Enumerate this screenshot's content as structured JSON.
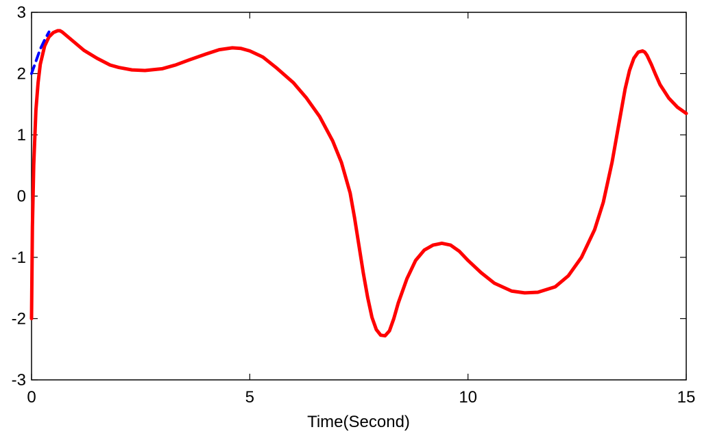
{
  "chart_data": {
    "type": "line",
    "title": "",
    "xlabel": "Time(Second)",
    "ylabel": "",
    "xlim": [
      0,
      15
    ],
    "ylim": [
      -3,
      3
    ],
    "xticks": [
      0,
      5,
      10,
      15
    ],
    "xtick_labels": [
      "0",
      "5",
      "10",
      "15"
    ],
    "yticks": [
      -3,
      -2,
      -1,
      0,
      1,
      2,
      3
    ],
    "ytick_labels": [
      "-3",
      "-2",
      "-1",
      "0",
      "1",
      "2",
      "3"
    ],
    "grid": false,
    "legend": "none",
    "series": [
      {
        "color": "#ff0000",
        "style": "solid",
        "x": [
          0,
          0.02,
          0.05,
          0.1,
          0.15,
          0.2,
          0.3,
          0.4,
          0.5,
          0.6,
          0.65,
          0.7,
          0.8,
          1.0,
          1.2,
          1.5,
          1.8,
          2.0,
          2.3,
          2.6,
          3.0,
          3.3,
          3.6,
          4.0,
          4.3,
          4.6,
          4.8,
          5.0,
          5.3,
          5.6,
          6.0,
          6.3,
          6.6,
          6.9,
          7.1,
          7.3,
          7.4,
          7.5,
          7.6,
          7.7,
          7.8,
          7.9,
          8.0,
          8.1,
          8.2,
          8.3,
          8.4,
          8.6,
          8.8,
          9.0,
          9.2,
          9.4,
          9.6,
          9.8,
          10.0,
          10.3,
          10.6,
          11.0,
          11.3,
          11.6,
          12.0,
          12.3,
          12.6,
          12.9,
          13.1,
          13.3,
          13.4,
          13.5,
          13.6,
          13.7,
          13.8,
          13.9,
          14.0,
          14.05,
          14.1,
          14.2,
          14.3,
          14.4,
          14.6,
          14.8,
          15.0
        ],
        "y": [
          -2.0,
          -0.5,
          0.5,
          1.4,
          1.85,
          2.15,
          2.45,
          2.6,
          2.67,
          2.7,
          2.7,
          2.68,
          2.62,
          2.5,
          2.38,
          2.25,
          2.14,
          2.1,
          2.06,
          2.05,
          2.08,
          2.14,
          2.22,
          2.32,
          2.39,
          2.42,
          2.41,
          2.37,
          2.27,
          2.1,
          1.85,
          1.6,
          1.3,
          0.9,
          0.55,
          0.05,
          -0.35,
          -0.8,
          -1.25,
          -1.65,
          -1.98,
          -2.18,
          -2.27,
          -2.28,
          -2.2,
          -2.0,
          -1.75,
          -1.35,
          -1.05,
          -0.88,
          -0.8,
          -0.77,
          -0.8,
          -0.9,
          -1.05,
          -1.25,
          -1.42,
          -1.55,
          -1.58,
          -1.57,
          -1.48,
          -1.3,
          -1.0,
          -0.55,
          -0.1,
          0.55,
          0.95,
          1.35,
          1.75,
          2.05,
          2.25,
          2.35,
          2.37,
          2.35,
          2.3,
          2.15,
          1.98,
          1.82,
          1.6,
          1.45,
          1.35
        ]
      },
      {
        "color": "#0000ff",
        "style": "dashed",
        "x": [
          0,
          0.1,
          0.2,
          0.3,
          0.4
        ],
        "y": [
          2.0,
          2.2,
          2.4,
          2.55,
          2.68
        ]
      }
    ]
  }
}
